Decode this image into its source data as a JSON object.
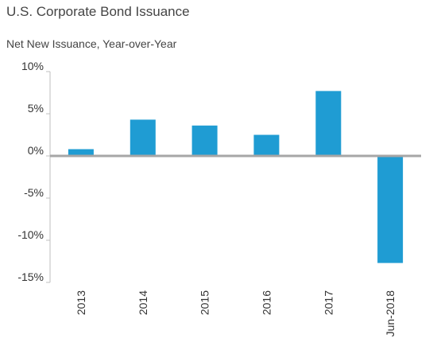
{
  "chart_data": {
    "type": "bar",
    "title": "U.S. Corporate Bond Issuance",
    "subtitle": "Net New Issuance, Year-over-Year",
    "categories": [
      "2013",
      "2014",
      "2015",
      "2016",
      "2017",
      "Jun-2018"
    ],
    "values": [
      0.8,
      4.3,
      3.6,
      2.5,
      7.7,
      -12.7
    ],
    "yticks": [
      "10%",
      "5%",
      "0%",
      "-5%",
      "-10%",
      "-15%"
    ],
    "ylim": [
      -15,
      10
    ],
    "grid": false,
    "legend": "none",
    "colors": {
      "bar": "#1f9cd3",
      "zero_line": "#a6a6a6",
      "axis_line": "#bfbfbf"
    }
  }
}
